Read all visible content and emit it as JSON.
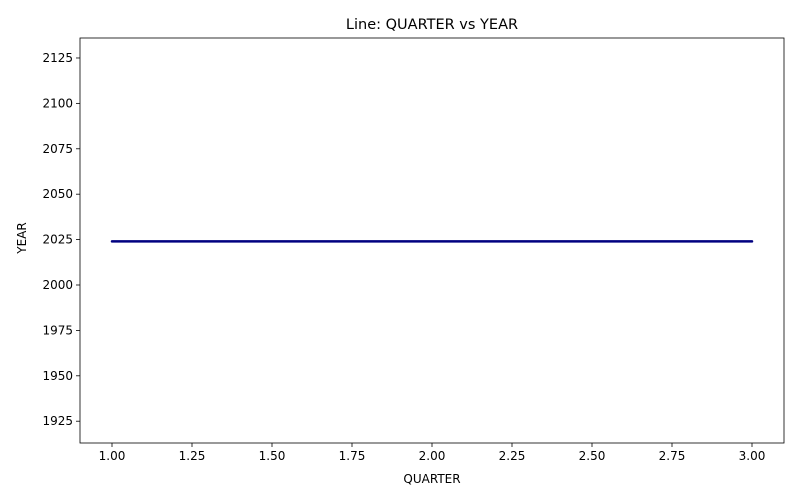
{
  "chart_data": {
    "type": "line",
    "title": "Line: QUARTER vs YEAR",
    "xlabel": "QUARTER",
    "ylabel": "YEAR",
    "x": [
      1.0,
      3.0
    ],
    "series": [
      {
        "values": [
          2024,
          2024
        ],
        "color": "#000080"
      }
    ],
    "xlim": [
      0.9,
      3.1
    ],
    "ylim": [
      1913,
      2136
    ],
    "xticks": [
      1.0,
      1.25,
      1.5,
      1.75,
      2.0,
      2.25,
      2.5,
      2.75,
      3.0
    ],
    "xtick_labels": [
      "1.00",
      "1.25",
      "1.50",
      "1.75",
      "2.00",
      "2.25",
      "2.50",
      "2.75",
      "3.00"
    ],
    "yticks": [
      1925,
      1950,
      1975,
      2000,
      2025,
      2050,
      2075,
      2100,
      2125
    ],
    "ytick_labels": [
      "1925",
      "1950",
      "1975",
      "2000",
      "2025",
      "2050",
      "2075",
      "2100",
      "2125"
    ],
    "grid": false,
    "legend": "none"
  }
}
